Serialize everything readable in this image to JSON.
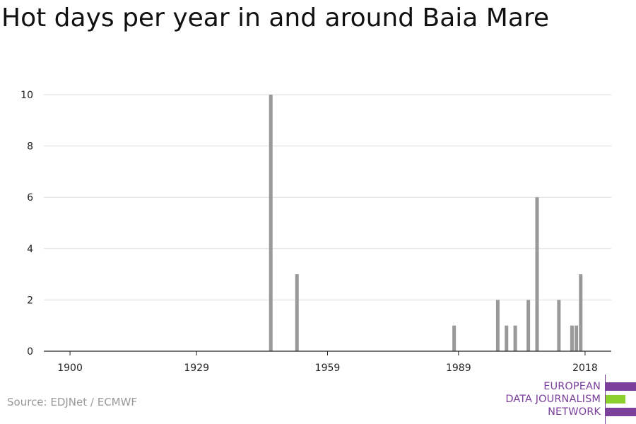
{
  "title": "Hot days per year in and around Baia Mare",
  "source": "Source: EDJNet / ECMWF",
  "logo": {
    "lines": [
      "EUROPEAN",
      "DATA JOURNALISM",
      "NETWORK"
    ],
    "colors": [
      "#7b3f9c",
      "#8cd12b",
      "#7b3f9c"
    ]
  },
  "colors": {
    "bar": "#999999",
    "grid": "#dddddd",
    "axis": "#222222"
  },
  "chart_data": {
    "type": "bar",
    "title": "Hot days per year in and around Baia Mare",
    "xlabel": "",
    "ylabel": "",
    "xlim": [
      1894,
      2024
    ],
    "ylim": [
      0,
      10
    ],
    "x_ticks": [
      1900,
      1929,
      1959,
      1989,
      2018
    ],
    "y_ticks": [
      0,
      2,
      4,
      6,
      8,
      10
    ],
    "grid": true,
    "legend": "none",
    "x": [
      1946,
      1952,
      1988,
      1998,
      2000,
      2002,
      2005,
      2007,
      2012,
      2015,
      2016,
      2017
    ],
    "values": [
      10,
      3,
      1,
      2,
      1,
      1,
      2,
      6,
      2,
      1,
      1,
      3
    ]
  }
}
